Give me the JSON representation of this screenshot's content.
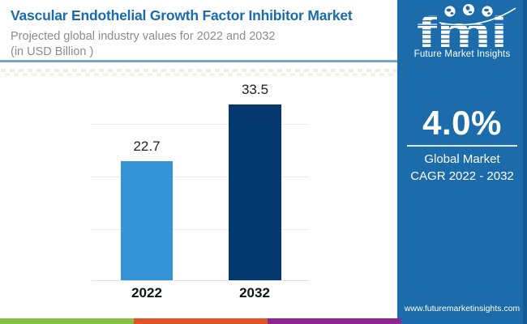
{
  "header": {
    "title": "Vascular Endothelial Growth Factor Inhibitor Market",
    "subtitle_line1": "Projected global industry values for 2022 and 2032",
    "subtitle_line2": "(in USD Billion )",
    "title_color": "#1A6BAE"
  },
  "chart_data": {
    "type": "bar",
    "title": "Vascular Endothelial Growth Factor Inhibitor Market",
    "subtitle": "Projected global industry values for 2022 and 2032 (in USD Billion )",
    "categories": [
      "2022",
      "2032"
    ],
    "values": [
      22.7,
      33.5
    ],
    "value_labels": [
      "22.7",
      "33.5"
    ],
    "unit": "USD Billion",
    "xlabel": "",
    "ylabel": "",
    "ylim": [
      0,
      40
    ],
    "gridlines": [
      0,
      10,
      20,
      30,
      40
    ],
    "grid": true,
    "legend": false,
    "bar_colors": [
      "#3494D6",
      "#04396F"
    ]
  },
  "sidebar": {
    "background": "#1C6CAB",
    "logo": {
      "text": "fmi",
      "tagline": "Future Market Insights",
      "icons": [
        "globe-icon",
        "globe-icon",
        "globe-icon"
      ]
    },
    "cagr_value": "4.0%",
    "cagr_label_line1": "Global Market",
    "cagr_label_line2": "CAGR 2022 - 2032",
    "website": "www.futuremarketinsights.com"
  },
  "footer": {
    "stripe_colors": [
      "#87BF45",
      "#DF5327",
      "#8F2590"
    ]
  }
}
